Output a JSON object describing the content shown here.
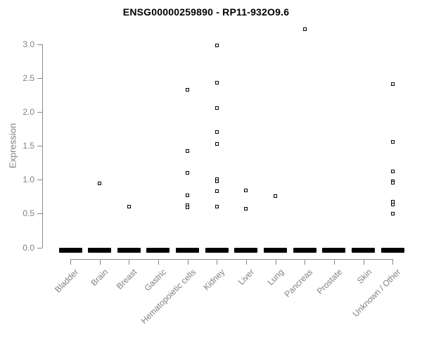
{
  "chart_data": {
    "type": "scatter",
    "title": "ENSG00000259890 - RP11-932O9.6",
    "xlabel": "",
    "ylabel": "Expression",
    "ylim": [
      0.0,
      3.3
    ],
    "yticks": [
      0.0,
      0.5,
      1.0,
      1.5,
      2.0,
      2.5,
      3.0
    ],
    "grid": false,
    "legend": false,
    "marker": "open-square",
    "categories": [
      "Bladder",
      "Brain",
      "Breast",
      "Gastric",
      "Hematopoietic cells",
      "Kidney",
      "Liver",
      "Lung",
      "Pancreas",
      "Prostate",
      "Skin",
      "Unknown / Other"
    ],
    "series": [
      {
        "name": "Bladder",
        "values": []
      },
      {
        "name": "Brain",
        "values": [
          0.95
        ]
      },
      {
        "name": "Breast",
        "values": [
          0.6
        ]
      },
      {
        "name": "Gastric",
        "values": []
      },
      {
        "name": "Hematopoietic cells",
        "values": [
          2.33,
          1.42,
          1.1,
          0.77,
          0.62,
          0.59
        ]
      },
      {
        "name": "Kidney",
        "values": [
          2.98,
          2.43,
          2.06,
          1.7,
          1.53,
          1.01,
          0.98,
          0.83,
          0.6
        ]
      },
      {
        "name": "Liver",
        "values": [
          0.84,
          0.57
        ]
      },
      {
        "name": "Lung",
        "values": [
          0.76
        ]
      },
      {
        "name": "Pancreas",
        "values": [
          3.22
        ]
      },
      {
        "name": "Prostate",
        "values": []
      },
      {
        "name": "Skin",
        "values": []
      },
      {
        "name": "Unknown / Other",
        "values": [
          2.41,
          1.56,
          1.12,
          0.98,
          0.96,
          0.68,
          0.63,
          0.5
        ]
      }
    ],
    "zero_dash_all_categories": true,
    "zero_dash_note": "every category shows a dense cluster of samples at expression 0, rendered as a thick black dash",
    "colors": {
      "title": "#000000",
      "axis": "#888888",
      "tick_text": "#808080",
      "point": "#000000",
      "zero_dash": "#000000",
      "background": "#ffffff"
    }
  }
}
